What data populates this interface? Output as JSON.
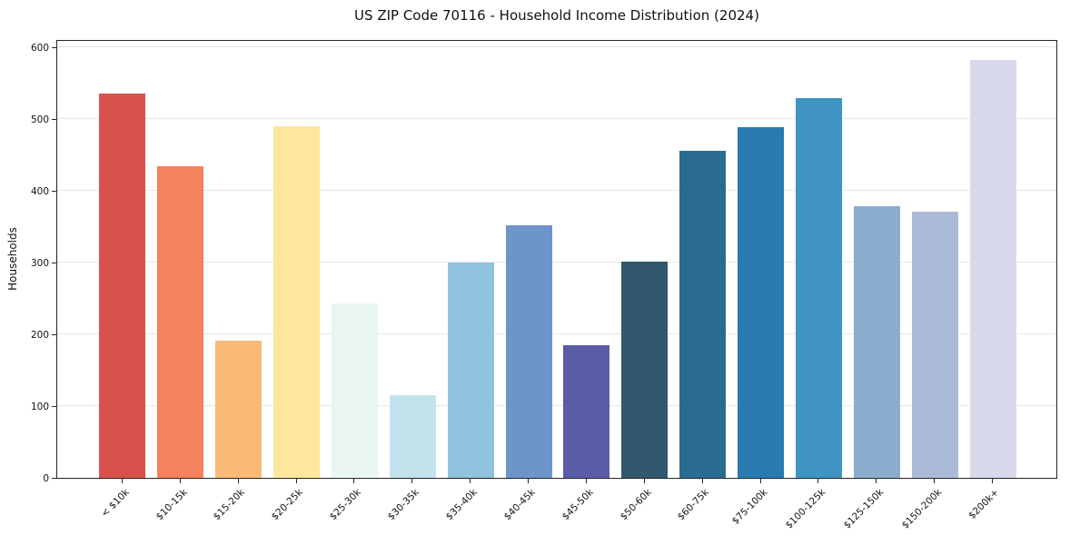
{
  "chart_data": {
    "type": "bar",
    "title": "US ZIP Code 70116 - Household Income Distribution (2024)",
    "xlabel": "",
    "ylabel": "Households",
    "categories": [
      "< $10k",
      "$10-15k",
      "$15-20k",
      "$20-25k",
      "$25-30k",
      "$30-35k",
      "$35-40k",
      "$40-45k",
      "$45-50k",
      "$50-60k",
      "$60-75k",
      "$75-100k",
      "$100-125k",
      "$125-150k",
      "$150-200k",
      "$200k+"
    ],
    "values": [
      535,
      434,
      191,
      490,
      243,
      115,
      300,
      352,
      185,
      301,
      456,
      488,
      529,
      378,
      371,
      582
    ],
    "bar_colors": [
      "#d6524b",
      "#f5825e",
      "#fbb977",
      "#fde79e",
      "#eaf6f1",
      "#c3e3ec",
      "#8fc3de",
      "#6e95c9",
      "#5a5ca8",
      "#31586c",
      "#2a6c90",
      "#2a7ab0",
      "#3f94c3",
      "#8cadce",
      "#aabbd9",
      "#d8d9ea"
    ],
    "yticks": [
      0,
      100,
      200,
      300,
      400,
      500,
      600
    ],
    "ylim": [
      0,
      611
    ],
    "grid": true,
    "legend": "none",
    "grid_color": "#e7e7e7",
    "spine_color": "#262626"
  }
}
